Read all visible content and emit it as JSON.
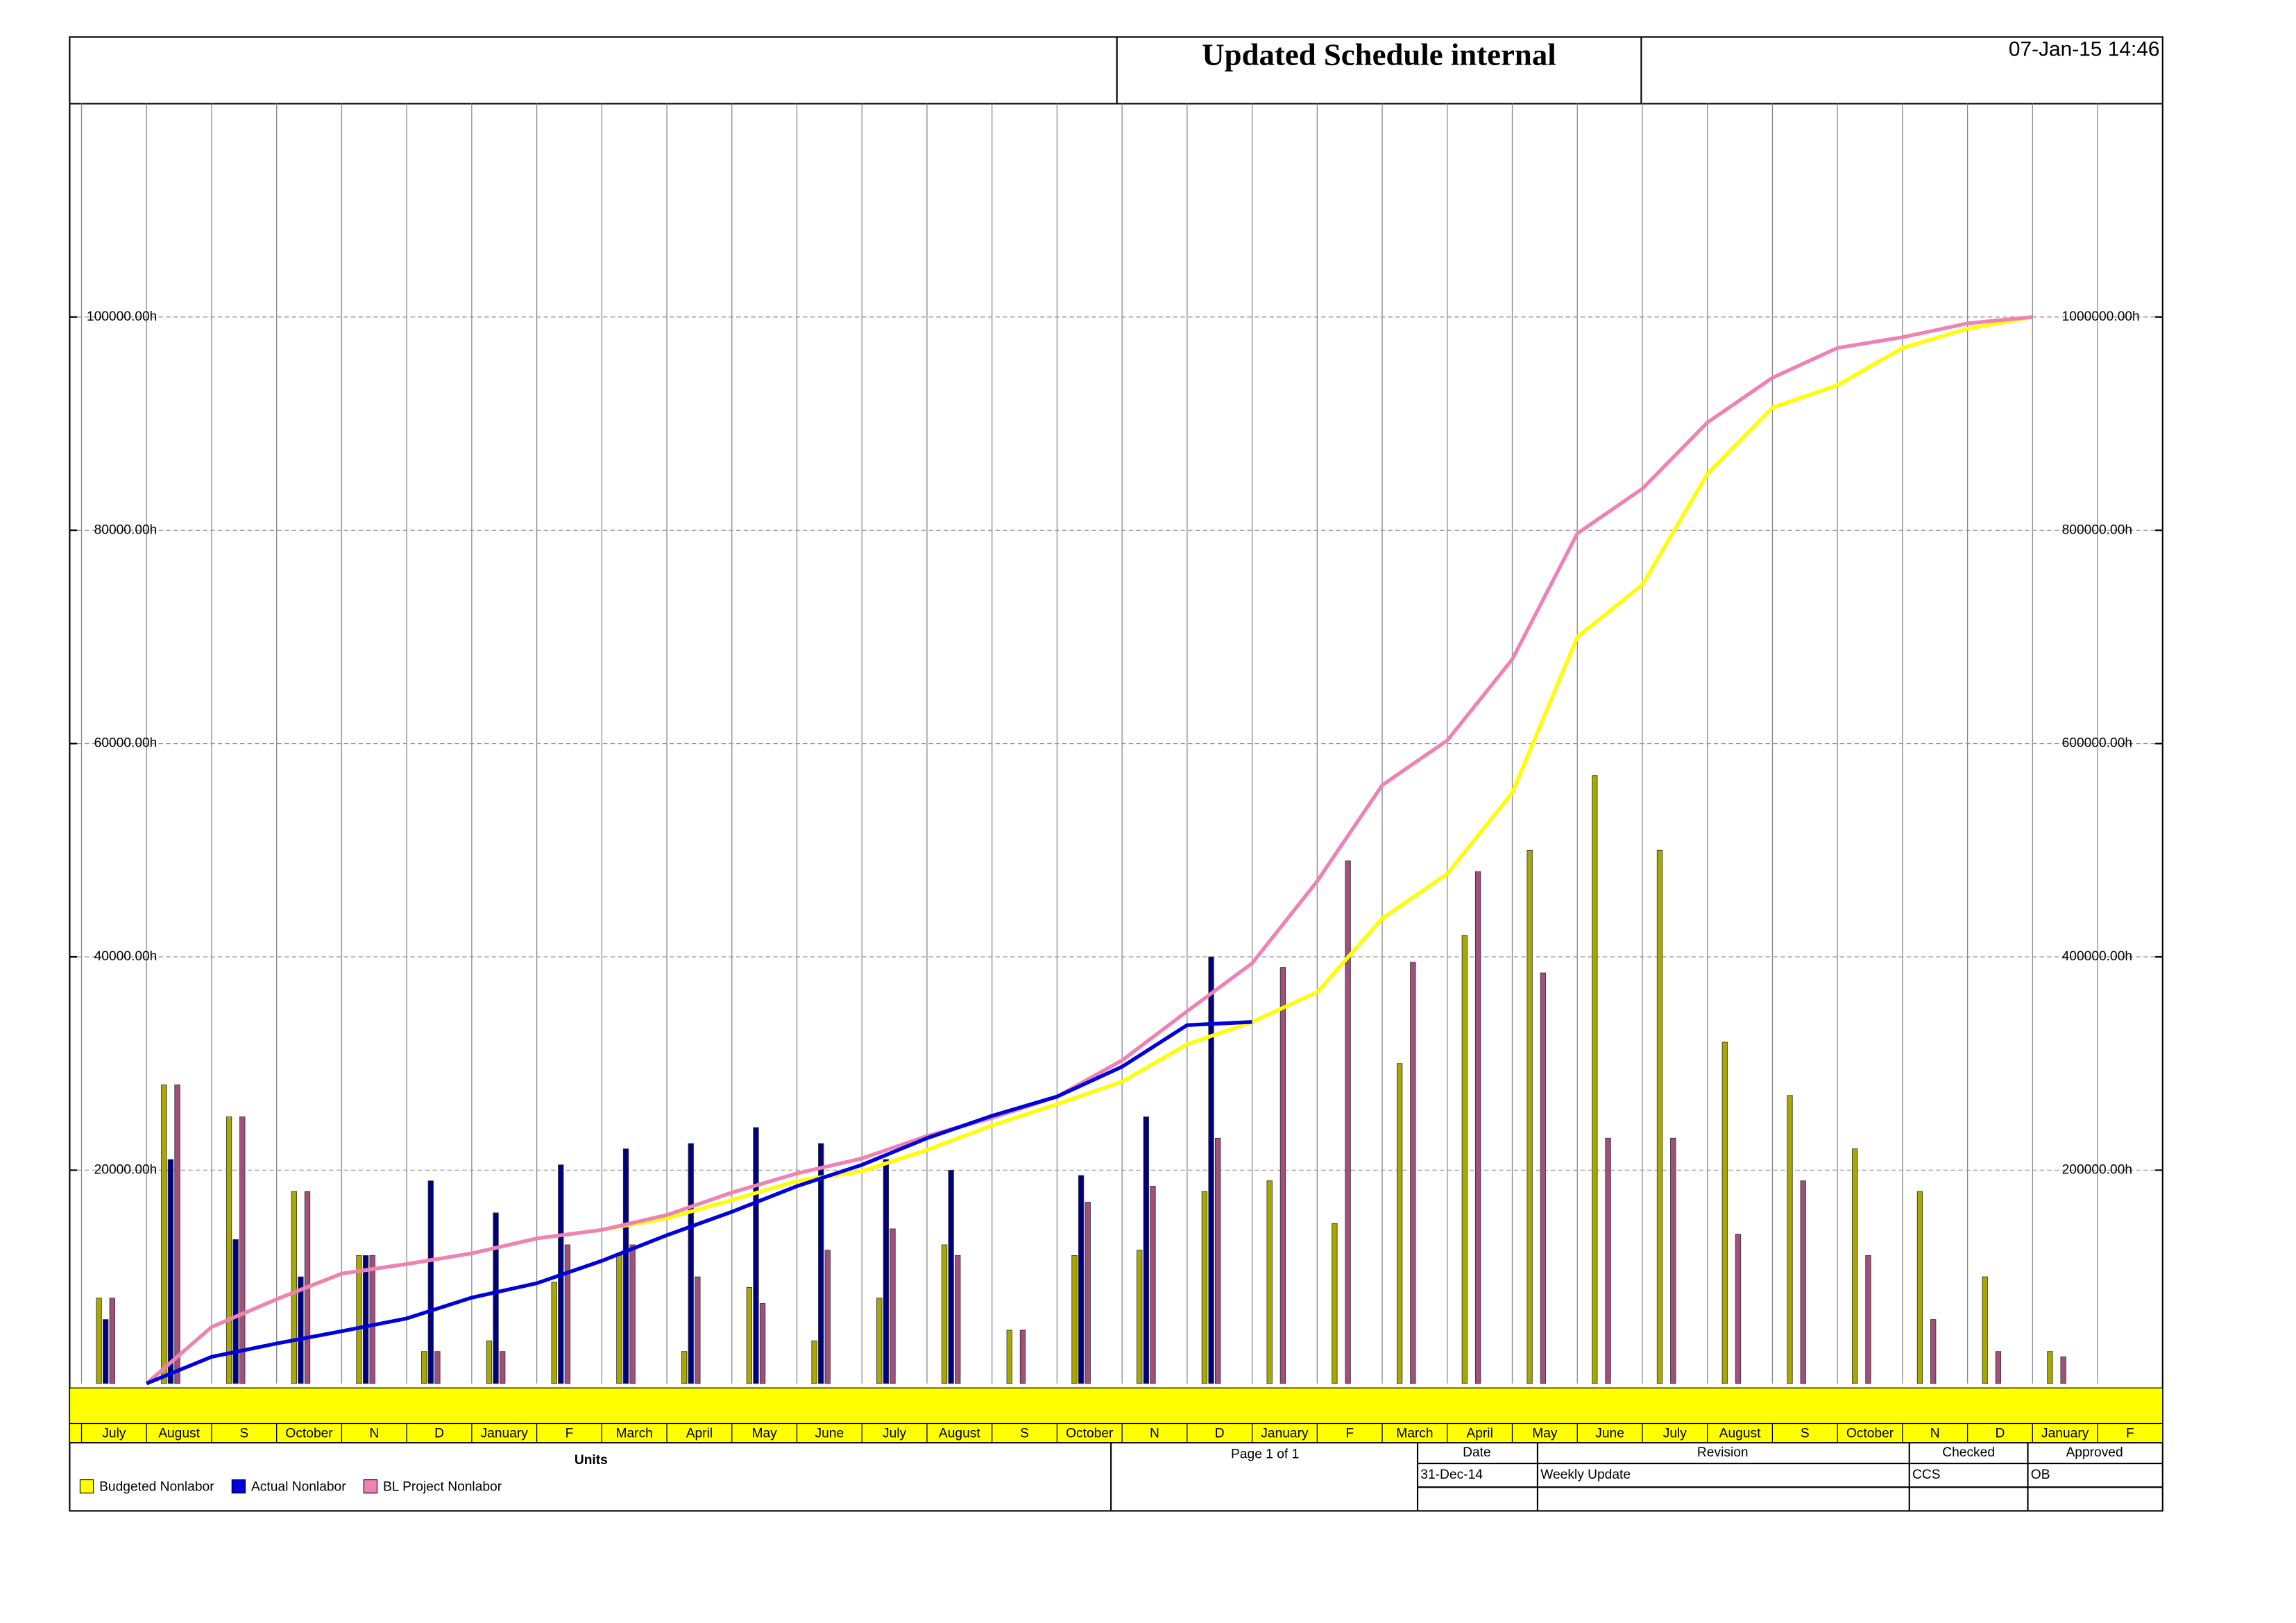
{
  "header": {
    "title": "Updated Schedule internal",
    "timestamp": "07-Jan-15 14:46"
  },
  "chart_data": {
    "type": "bar-line",
    "categories": [
      "July",
      "August",
      "S",
      "October",
      "N",
      "D",
      "January",
      "F",
      "March",
      "April",
      "May",
      "June",
      "July",
      "August",
      "S",
      "October",
      "N",
      "D",
      "January",
      "F",
      "March",
      "April",
      "May",
      "June",
      "July",
      "August",
      "S",
      "October",
      "N",
      "D",
      "January",
      "F"
    ],
    "series": [
      {
        "name": "Budgeted Nonlabor",
        "color": "#ffff00",
        "bar_color": "#a8a800",
        "values": [
          8000,
          28000,
          25000,
          18000,
          12000,
          3000,
          4000,
          9500,
          12000,
          3000,
          9000,
          4000,
          8000,
          13000,
          5000,
          12000,
          12500,
          18000,
          19000,
          15000,
          30000,
          42000,
          50000,
          57000,
          50000,
          32000,
          27000,
          22000,
          18000,
          10000,
          3000,
          null
        ],
        "cumulative": [
          0,
          53000,
          79000,
          103000,
          112000,
          122000,
          136000,
          144000,
          155000,
          172000,
          190000,
          199000,
          219000,
          242000,
          262000,
          283000,
          318000,
          339000,
          367000,
          436000,
          478000,
          554000,
          700000,
          749000,
          853000,
          915000,
          936000,
          971000,
          989000,
          1000000,
          null,
          null
        ]
      },
      {
        "name": "Actual Nonlabor",
        "color": "#0000dd",
        "bar_color": "#000080",
        "values": [
          6000,
          21000,
          13500,
          10000,
          12000,
          19000,
          16000,
          20500,
          22000,
          22500,
          24000,
          22500,
          21000,
          20000,
          0,
          19500,
          25000,
          40000,
          null,
          null,
          null,
          null,
          null,
          null,
          null,
          null,
          null,
          null,
          null,
          null,
          null,
          null
        ],
        "cumulative": [
          0,
          25000,
          37500,
          49000,
          61000,
          80500,
          94000,
          115000,
          139000,
          161000,
          185000,
          205000,
          230000,
          251000,
          269000,
          297000,
          336000,
          339000,
          null,
          null,
          null,
          null,
          null,
          null,
          null,
          null,
          null,
          null,
          null,
          null,
          null,
          null
        ]
      },
      {
        "name": "BL Project Nonlabor",
        "color": "#ee82b4",
        "bar_color": "#a0507a",
        "values": [
          8000,
          28000,
          25000,
          18000,
          12000,
          3000,
          3000,
          13000,
          13000,
          10000,
          7500,
          12500,
          14500,
          12000,
          5000,
          17000,
          18500,
          23000,
          39000,
          49000,
          39500,
          48000,
          38500,
          23000,
          23000,
          14000,
          19000,
          12000,
          6000,
          3000,
          2500,
          null
        ],
        "cumulative": [
          0,
          53000,
          79000,
          103000,
          112000,
          122000,
          136000,
          144000,
          158000,
          179000,
          197000,
          211000,
          232000,
          249000,
          269000,
          303000,
          349000,
          394000,
          471000,
          561000,
          603000,
          679000,
          797000,
          839000,
          901000,
          943000,
          971000,
          981000,
          994000,
          1000000,
          null,
          null
        ]
      }
    ],
    "ylim": [
      0,
      120000
    ],
    "yticks": [
      {
        "value": 20000,
        "label": "20000.00h"
      },
      {
        "value": 40000,
        "label": "40000.00h"
      },
      {
        "value": 60000,
        "label": "60000.00h"
      },
      {
        "value": 80000,
        "label": "80000.00h"
      },
      {
        "value": 100000,
        "label": "100000.00h"
      }
    ],
    "y2lim": [
      0,
      1200000
    ],
    "y2ticks": [
      {
        "value": 200000,
        "label": "200000.00h"
      },
      {
        "value": 400000,
        "label": "400000.00h"
      },
      {
        "value": 600000,
        "label": "600000.00h"
      },
      {
        "value": 800000,
        "label": "800000.00h"
      },
      {
        "value": 1000000,
        "label": "1000000.00h"
      }
    ],
    "grid": true,
    "axis_band_color": "#ffff00"
  },
  "footer": {
    "units_label": "Units",
    "page": "Page 1 of 1",
    "table": {
      "headers": [
        "Date",
        "Revision",
        "Checked",
        "Approved"
      ],
      "rows": [
        [
          "31-Dec-14",
          "Weekly Update",
          "CCS",
          "OB"
        ]
      ]
    }
  }
}
